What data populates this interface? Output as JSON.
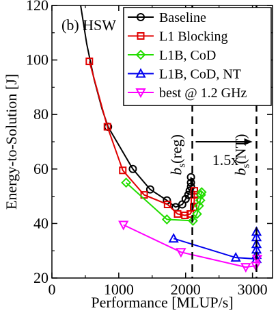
{
  "chart_data": {
    "type": "line",
    "panel_label": "(b) HSW",
    "xlabel": "Performance [MLUP/s]",
    "ylabel": "Energy-to-Solution [J]",
    "xlim": [
      0,
      3300
    ],
    "ylim": [
      20,
      120
    ],
    "xticks": [
      0,
      1000,
      2000,
      3000
    ],
    "yticks": [
      20,
      40,
      60,
      80,
      100,
      120
    ],
    "grid": false,
    "legend_position": "top-right",
    "series": [
      {
        "name": "Baseline",
        "color": "#000000",
        "marker": "circle",
        "x": [
          840,
          1210,
          1470,
          1720,
          1850,
          1950,
          2000,
          2040,
          2060,
          2080,
          2080,
          2080
        ],
        "y": [
          75.5,
          60,
          52.5,
          48.5,
          46,
          47,
          49,
          50.5,
          52,
          53.5,
          55,
          57
        ]
      },
      {
        "name": "L1 Blocking",
        "color": "#e00000",
        "marker": "square",
        "x": [
          560,
          830,
          1060,
          1380,
          1730,
          1880,
          1990,
          2070,
          2120,
          2130,
          2130,
          2130
        ],
        "y": [
          99.5,
          75.5,
          59.5,
          50.5,
          47,
          43.5,
          43,
          43.5,
          46,
          48.5,
          50.5,
          52
        ]
      },
      {
        "name": "L1B, CoD",
        "color": "#22dd00",
        "marker": "diamond",
        "x": [
          1110,
          1720,
          2110,
          2170,
          2200,
          2220,
          2230,
          2240
        ],
        "y": [
          55,
          41.5,
          41,
          43.5,
          46.5,
          48.5,
          50.5,
          51.5
        ]
      },
      {
        "name": "L1B, CoD, NT",
        "color": "#0000ee",
        "marker": "triangle-up",
        "x": [
          1820,
          2750,
          3060,
          3060,
          3060,
          3060,
          3060,
          3060
        ],
        "y": [
          34.5,
          27.5,
          27,
          28.5,
          30.5,
          32.5,
          35,
          37
        ]
      },
      {
        "name": "best @ 1.2 GHz",
        "color": "#ff00ff",
        "marker": "triangle-down",
        "x": [
          1070,
          1930,
          2900,
          3050,
          3070
        ],
        "y": [
          39.5,
          29.5,
          24,
          24.5,
          27
        ]
      }
    ],
    "baseline_fit": {
      "x": [
        430,
        520,
        630,
        750,
        840
      ],
      "y": [
        120,
        106,
        93,
        82,
        75.5
      ]
    },
    "vertical_lines": [
      {
        "x": 2100,
        "label_main": "b",
        "label_sub": "s",
        "label_paren": "(reg)"
      },
      {
        "x": 3060,
        "label_main": "b",
        "label_sub": "s",
        "label_paren": "(NT)"
      }
    ],
    "arrow": {
      "x_from": 2150,
      "x_to": 3000,
      "y": 70,
      "label": "1.5x"
    }
  }
}
